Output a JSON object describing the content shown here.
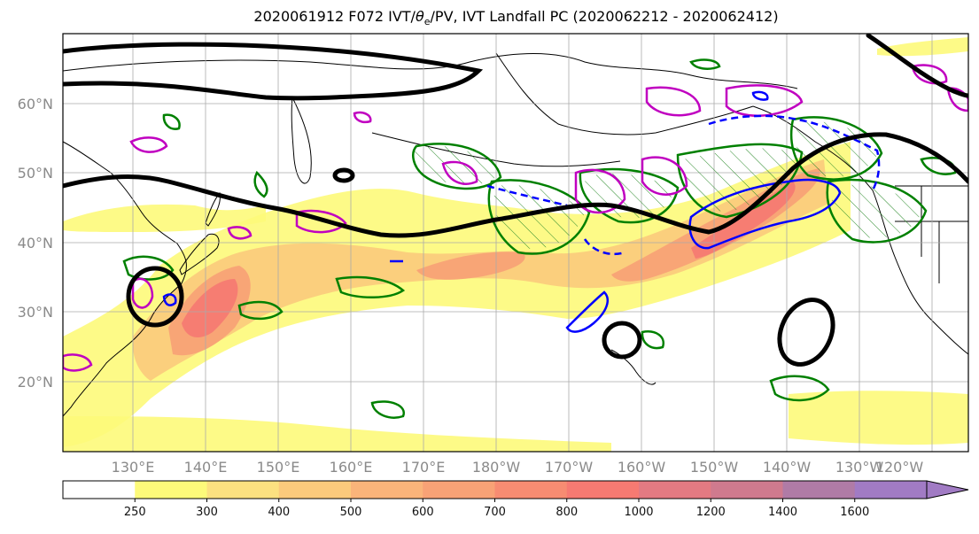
{
  "title": {
    "prefix": "2020061912 F072 IVT/",
    "theta": "θ",
    "sub": "e",
    "suffix": "/PV, IVT Landfall PC (2020062212 - 2020062412)"
  },
  "lat_labels": [
    "60°N",
    "50°N",
    "40°N",
    "30°N",
    "20°N"
  ],
  "lon_labels": [
    "130°E",
    "140°E",
    "150°E",
    "160°E",
    "170°E",
    "180°W",
    "170°W",
    "160°W",
    "150°W",
    "140°W",
    "130°W",
    "120°W"
  ],
  "colorbar": {
    "ticks": [
      "250",
      "300",
      "400",
      "500",
      "600",
      "700",
      "800",
      "1000",
      "1200",
      "1400",
      "1600"
    ],
    "colors": [
      "#ffffff",
      "#fdfa7a",
      "#fce180",
      "#fbca7c",
      "#fab47a",
      "#f8a276",
      "#f78c72",
      "#f67a72",
      "#e37a82",
      "#cf7a8e",
      "#b07ba6",
      "#a17bc4"
    ]
  },
  "colors": {
    "pv_contour": "#000000",
    "theta_e_contour": "#008000",
    "landfall_pc_pos": "#0000ff",
    "landfall_pc_mag": "#c000c0",
    "coastline": "#000000",
    "grid": "#aaaaaa"
  }
}
